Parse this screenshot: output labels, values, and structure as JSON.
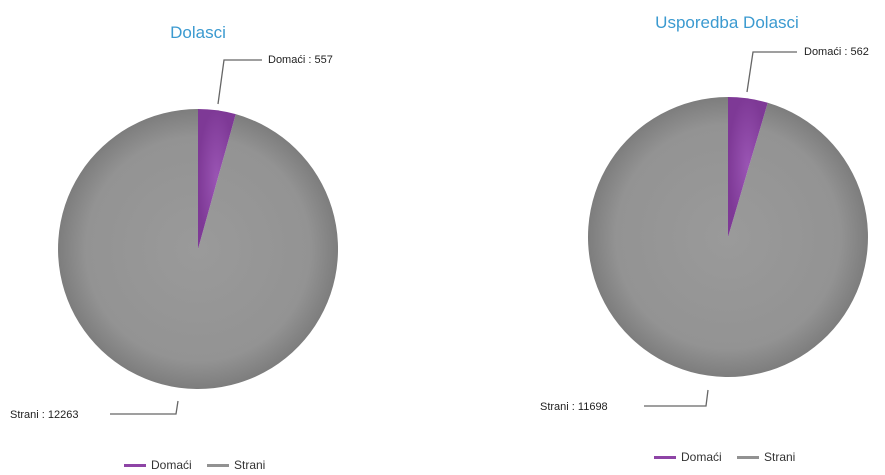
{
  "colors": {
    "domaci": "#8e44a6",
    "strani": "#929292",
    "title": "#3b9ad0",
    "leader": "#666666"
  },
  "chart_data": [
    {
      "type": "pie",
      "title": "Dolasci",
      "series": [
        {
          "name": "Domaći",
          "value": 557,
          "label": "Domaći : 557",
          "color": "#8e44a6"
        },
        {
          "name": "Strani",
          "value": 12263,
          "label": "Strani : 12263",
          "color": "#929292"
        }
      ],
      "legend": {
        "position": "bottom",
        "items": [
          "Domaći",
          "Strani"
        ]
      }
    },
    {
      "type": "pie",
      "title": "Usporedba Dolasci",
      "series": [
        {
          "name": "Domaći",
          "value": 562,
          "label": "Domaći : 562",
          "color": "#8e44a6"
        },
        {
          "name": "Strani",
          "value": 11698,
          "label": "Strani : 11698",
          "color": "#929292"
        }
      ],
      "legend": {
        "position": "bottom",
        "items": [
          "Domaći",
          "Strani"
        ]
      }
    }
  ]
}
